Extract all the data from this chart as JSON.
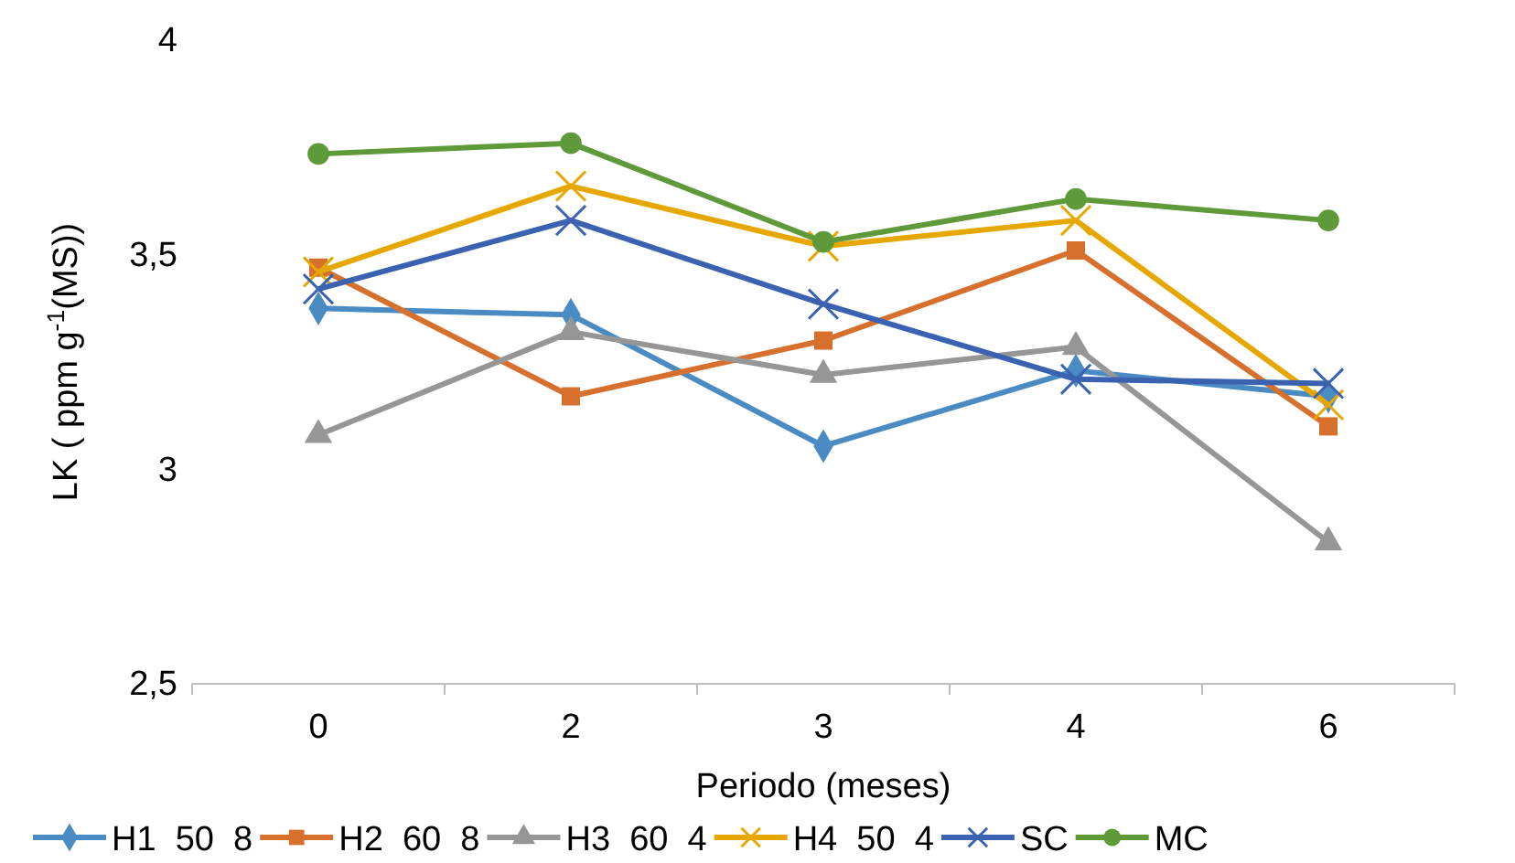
{
  "chart_data": {
    "type": "line",
    "xlabel": "Periodo (meses)",
    "ylabel": "LK ( ppm g$^{-1}$(MS))",
    "categories": [
      "0",
      "2",
      "3",
      "4",
      "6"
    ],
    "ylim": [
      2.5,
      4
    ],
    "yticks": [
      {
        "value": 2.5,
        "label": "2,5"
      },
      3,
      {
        "value": 3.5,
        "label": "3,5"
      },
      4
    ],
    "grid": false,
    "legend": "bottom",
    "line_style": "solid",
    "series": [
      {
        "name": "H1  50  8",
        "color": "#4a8bc4",
        "marker": "diamond",
        "values": [
          3.375,
          3.36,
          3.054,
          3.23,
          3.17
        ]
      },
      {
        "name": "H2  60  8",
        "color": "#d6702c",
        "marker": "square",
        "values": [
          3.47,
          3.17,
          3.3,
          3.51,
          3.1
        ]
      },
      {
        "name": "H3  60  4",
        "color": "#969696",
        "marker": "triangle",
        "values": [
          3.08,
          3.32,
          3.22,
          3.285,
          2.83
        ]
      },
      {
        "name": "H4  50  4",
        "color": "#e6a800",
        "marker": "cross",
        "values": [
          3.46,
          3.66,
          3.52,
          3.58,
          3.15
        ]
      },
      {
        "name": "SC",
        "color": "#3a62b0",
        "marker": "cross",
        "values": [
          3.42,
          3.58,
          3.385,
          3.21,
          3.2
        ]
      },
      {
        "name": "MC",
        "color": "#5e9a3a",
        "marker": "circle",
        "values": [
          3.735,
          3.76,
          3.53,
          3.63,
          3.58
        ]
      }
    ]
  }
}
